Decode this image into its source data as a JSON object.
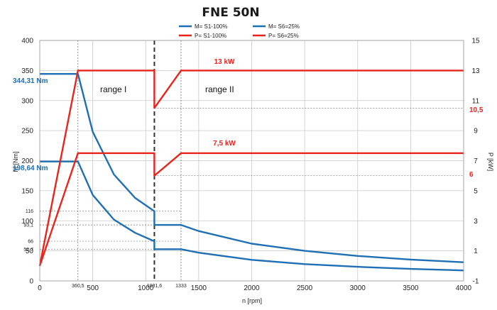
{
  "chart_data": {
    "type": "line",
    "title": "FNE 50N",
    "xlabel": "n [rpm]",
    "ylabel": "M [Nm]",
    "y2label": "P [kW]",
    "xlim": [
      0,
      4000
    ],
    "ylim": [
      0,
      400
    ],
    "y2lim": [
      -1,
      15
    ],
    "x_ticks": [
      0,
      500,
      1000,
      1500,
      2000,
      2500,
      3000,
      3500,
      4000
    ],
    "y_ticks": [
      0,
      50,
      100,
      150,
      200,
      250,
      300,
      350,
      400
    ],
    "y2_ticks": [
      -1,
      1,
      3,
      5,
      7,
      9,
      11,
      13,
      15
    ],
    "x_extra_ticks": [
      {
        "value": 360.5,
        "label": "360,5"
      },
      {
        "value": 1081.6,
        "label": "1081,6"
      },
      {
        "value": 1333,
        "label": "1333"
      }
    ],
    "y_extra_ticks": [
      {
        "value": 116,
        "label": "116"
      },
      {
        "value": 93.1,
        "label": "93,1"
      },
      {
        "value": 66,
        "label": "66"
      },
      {
        "value": 52.7,
        "label": "52,7"
      }
    ],
    "grid": true,
    "legend_position": "top",
    "series": [
      {
        "name": "M= S1-100%",
        "axis": "left",
        "color": "#1f6fb4",
        "x": [
          0,
          360.5,
          500,
          700,
          900,
          1081.6,
          1081.6,
          1333,
          1500,
          2000,
          2500,
          3000,
          3500,
          4000
        ],
        "y": [
          198.64,
          198.64,
          143,
          102,
          80,
          66,
          52.7,
          52.7,
          47,
          35,
          28,
          23.5,
          20,
          17.5
        ]
      },
      {
        "name": "M= S6=25%",
        "axis": "left",
        "color": "#1f6fb4",
        "x": [
          0,
          360.5,
          500,
          700,
          900,
          1081.6,
          1081.6,
          1333,
          1500,
          2000,
          2500,
          3000,
          3500,
          4000
        ],
        "y": [
          344.31,
          344.31,
          248,
          177,
          138,
          116,
          93.1,
          93.1,
          83,
          62,
          50,
          41.5,
          35.5,
          31
        ]
      },
      {
        "name": "P= S1-100%",
        "axis": "right",
        "color": "#e8251d",
        "x": [
          0,
          360.5,
          1081.6,
          1081.6,
          1333,
          4000
        ],
        "y": [
          0,
          7.5,
          7.5,
          6,
          7.5,
          7.5
        ]
      },
      {
        "name": "P= S6=25%",
        "axis": "right",
        "color": "#e8251d",
        "x": [
          0,
          360.5,
          1081.6,
          1081.6,
          1333,
          4000
        ],
        "y": [
          0,
          13,
          13,
          10.5,
          13,
          13
        ]
      }
    ],
    "annotations": {
      "power_high": "13 kW",
      "power_low": "7,5 kW",
      "torque_high": "344,31 Nm",
      "torque_low": "198,64 Nm",
      "p_drop_high": "10,5",
      "p_drop_low": "6",
      "range_1": "range I",
      "range_2": "range II"
    }
  }
}
